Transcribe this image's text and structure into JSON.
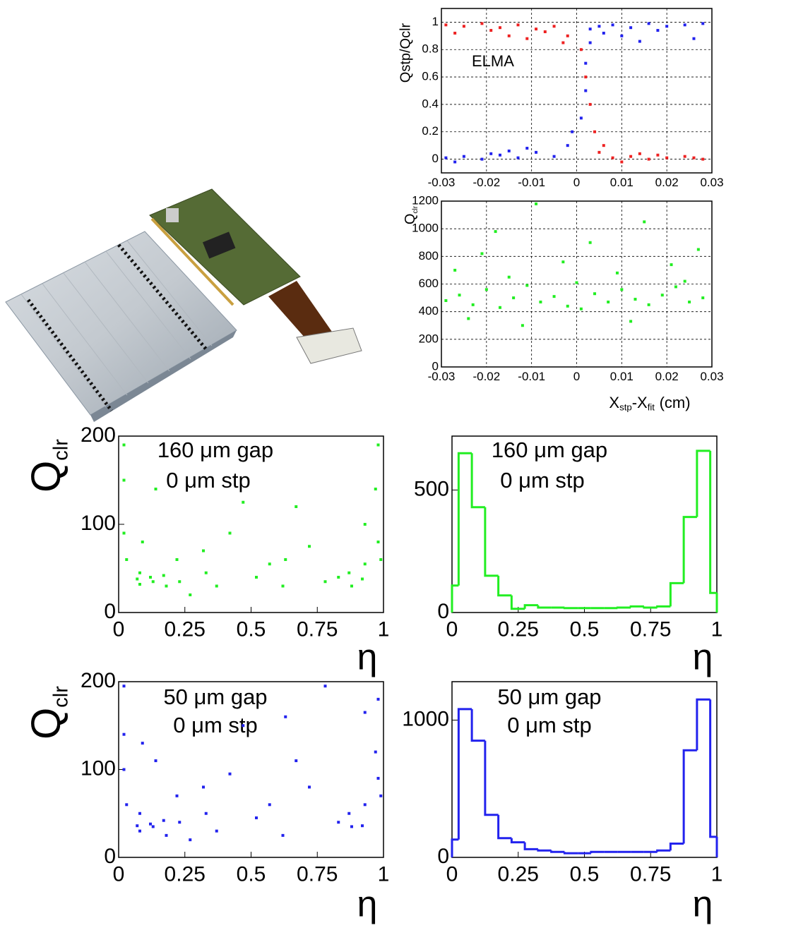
{
  "chart_data": [
    {
      "type": "scatter",
      "y_label": "Qstp/Qclr",
      "annotation": "ELMA",
      "grid": true,
      "xlim": [
        -0.03,
        0.03
      ],
      "xticks": [
        -0.03,
        -0.02,
        -0.01,
        0,
        0.01,
        0.02,
        0.03
      ],
      "ylim": [
        -0.1,
        1.1
      ],
      "yticks": [
        0,
        0.2,
        0.4,
        0.6,
        0.8,
        1
      ],
      "series": [
        {
          "color": "#ee2222",
          "x": [
            -0.029,
            -0.025,
            -0.021,
            -0.017,
            -0.013,
            -0.009,
            -0.005,
            -0.002,
            -0.027,
            -0.019,
            -0.011,
            -0.003,
            -0.015,
            -0.007,
            0.001,
            0.002,
            0.003,
            0.004,
            0.005,
            0.008,
            0.012,
            0.016,
            0.02,
            0.024,
            0.028,
            0.01,
            0.018,
            0.026,
            0.006,
            0.014
          ],
          "y": [
            0.98,
            0.97,
            0.99,
            0.96,
            0.98,
            0.95,
            0.97,
            0.9,
            0.92,
            0.94,
            0.88,
            0.85,
            0.9,
            0.93,
            0.8,
            0.6,
            0.4,
            0.2,
            0.05,
            0.01,
            0.02,
            0,
            0.01,
            0.02,
            0,
            -0.02,
            0.03,
            0.01,
            0.1,
            0.04
          ]
        },
        {
          "color": "#2222ee",
          "x": [
            -0.029,
            -0.025,
            -0.021,
            -0.017,
            -0.013,
            -0.009,
            -0.005,
            -0.002,
            -0.027,
            -0.019,
            -0.011,
            -0.015,
            0.001,
            0.002,
            0.002,
            0.003,
            0.003,
            0.005,
            0.008,
            0.012,
            0.016,
            0.02,
            0.024,
            0.028,
            0.01,
            0.018,
            0.026,
            0.006,
            0.014,
            -0.001
          ],
          "y": [
            0.01,
            0.02,
            0,
            0.03,
            0.01,
            0.05,
            0.02,
            0.1,
            -0.02,
            0.04,
            0.08,
            0.06,
            0.3,
            0.5,
            0.7,
            0.85,
            0.95,
            0.97,
            0.98,
            0.96,
            0.99,
            0.97,
            0.98,
            0.99,
            0.9,
            0.94,
            0.88,
            0.92,
            0.86,
            0.2
          ]
        }
      ]
    },
    {
      "type": "scatter",
      "y_label": [
        "Q",
        "clr"
      ],
      "x_label": [
        "X",
        "stp",
        "-X",
        "fit",
        "(cm)"
      ],
      "grid": true,
      "xlim": [
        -0.03,
        0.03
      ],
      "xticks": [
        -0.03,
        -0.02,
        -0.01,
        0,
        0.01,
        0.02,
        0.03
      ],
      "ylim": [
        0,
        1200
      ],
      "yticks": [
        0,
        200,
        400,
        600,
        800,
        1000,
        1200
      ],
      "series": [
        {
          "color": "#22ee22",
          "x": [
            -0.029,
            -0.026,
            -0.023,
            -0.02,
            -0.017,
            -0.014,
            -0.011,
            -0.008,
            -0.005,
            -0.002,
            0.001,
            0.004,
            0.007,
            0.01,
            0.013,
            0.016,
            0.019,
            0.022,
            0.025,
            0.028,
            -0.027,
            -0.021,
            -0.015,
            -0.009,
            -0.003,
            0.003,
            0.009,
            0.015,
            0.021,
            0.027,
            -0.024,
            -0.012,
            0,
            0.012,
            0.024,
            -0.018
          ],
          "y": [
            480,
            520,
            450,
            560,
            430,
            500,
            590,
            470,
            510,
            440,
            420,
            530,
            470,
            560,
            490,
            450,
            520,
            580,
            470,
            500,
            700,
            820,
            650,
            1180,
            760,
            900,
            680,
            1050,
            740,
            850,
            350,
            300,
            610,
            330,
            620,
            980
          ]
        }
      ]
    },
    {
      "type": "scatter",
      "y_label": [
        "Q",
        "clr"
      ],
      "x_label": "η",
      "annotation": [
        "160 μm gap",
        "0 μm stp"
      ],
      "grid": false,
      "xlim": [
        0,
        1
      ],
      "xticks": [
        0,
        0.25,
        0.5,
        0.75,
        1
      ],
      "ylim": [
        0,
        200
      ],
      "yticks": [
        0,
        100,
        200
      ],
      "series": [
        {
          "color": "#22ee22",
          "x": [
            0.02,
            0.02,
            0.02,
            0.03,
            0.07,
            0.08,
            0.08,
            0.09,
            0.12,
            0.13,
            0.14,
            0.17,
            0.18,
            0.22,
            0.23,
            0.27,
            0.32,
            0.33,
            0.37,
            0.42,
            0.47,
            0.52,
            0.57,
            0.62,
            0.63,
            0.67,
            0.72,
            0.78,
            0.83,
            0.87,
            0.88,
            0.92,
            0.93,
            0.93,
            0.97,
            0.98,
            0.98,
            0.99
          ],
          "y": [
            190,
            150,
            90,
            60,
            38,
            45,
            32,
            80,
            40,
            35,
            140,
            42,
            30,
            60,
            35,
            20,
            70,
            45,
            30,
            90,
            125,
            40,
            55,
            30,
            60,
            120,
            75,
            35,
            40,
            45,
            30,
            38,
            55,
            100,
            140,
            190,
            80,
            60
          ]
        }
      ]
    },
    {
      "type": "histogram",
      "x_label": "η",
      "annotation": [
        "160 μm gap",
        "0 μm stp"
      ],
      "color": "#22ee22",
      "bins": [
        0,
        0.025,
        0.075,
        0.125,
        0.175,
        0.225,
        0.275,
        0.325,
        0.375,
        0.425,
        0.475,
        0.525,
        0.575,
        0.625,
        0.675,
        0.725,
        0.775,
        0.825,
        0.875,
        0.925,
        0.975,
        1
      ],
      "values": [
        110,
        650,
        430,
        150,
        70,
        15,
        30,
        20,
        20,
        18,
        18,
        18,
        18,
        20,
        25,
        20,
        25,
        120,
        390,
        660,
        80
      ],
      "xlim": [
        0,
        1
      ],
      "xticks": [
        0,
        0.25,
        0.5,
        0.75,
        1
      ],
      "ylim": [
        0,
        720
      ],
      "yticks": [
        0,
        500
      ]
    },
    {
      "type": "scatter",
      "y_label": [
        "Q",
        "clr"
      ],
      "x_label": "η",
      "annotation": [
        "50 μm gap",
        "0 μm stp"
      ],
      "grid": false,
      "xlim": [
        0,
        1
      ],
      "xticks": [
        0,
        0.25,
        0.5,
        0.75,
        1
      ],
      "ylim": [
        0,
        200
      ],
      "yticks": [
        0,
        100,
        200
      ],
      "series": [
        {
          "color": "#2222ee",
          "x": [
            0.02,
            0.02,
            0.02,
            0.03,
            0.07,
            0.08,
            0.08,
            0.09,
            0.12,
            0.13,
            0.14,
            0.17,
            0.18,
            0.22,
            0.23,
            0.27,
            0.32,
            0.33,
            0.37,
            0.42,
            0.47,
            0.52,
            0.57,
            0.62,
            0.63,
            0.67,
            0.72,
            0.78,
            0.83,
            0.87,
            0.88,
            0.92,
            0.93,
            0.93,
            0.97,
            0.98,
            0.98,
            0.99
          ],
          "y": [
            195,
            140,
            100,
            60,
            36,
            50,
            30,
            130,
            38,
            35,
            110,
            42,
            25,
            70,
            40,
            20,
            80,
            50,
            30,
            95,
            150,
            45,
            60,
            25,
            160,
            110,
            80,
            195,
            40,
            50,
            35,
            36,
            60,
            165,
            120,
            180,
            90,
            70
          ]
        }
      ]
    },
    {
      "type": "histogram",
      "x_label": "η",
      "annotation": [
        "50 μm gap",
        "0 μm stp"
      ],
      "color": "#2222ee",
      "bins": [
        0,
        0.025,
        0.075,
        0.125,
        0.175,
        0.225,
        0.275,
        0.325,
        0.375,
        0.425,
        0.475,
        0.525,
        0.575,
        0.625,
        0.675,
        0.725,
        0.775,
        0.825,
        0.875,
        0.925,
        0.975,
        1
      ],
      "values": [
        130,
        1080,
        850,
        310,
        140,
        110,
        60,
        50,
        40,
        30,
        30,
        40,
        40,
        40,
        40,
        40,
        50,
        100,
        780,
        1150,
        150
      ],
      "xlim": [
        0,
        1
      ],
      "xticks": [
        0,
        0.25,
        0.5,
        0.75,
        1
      ],
      "ylim": [
        0,
        1280
      ],
      "yticks": [
        0,
        1000
      ]
    }
  ]
}
